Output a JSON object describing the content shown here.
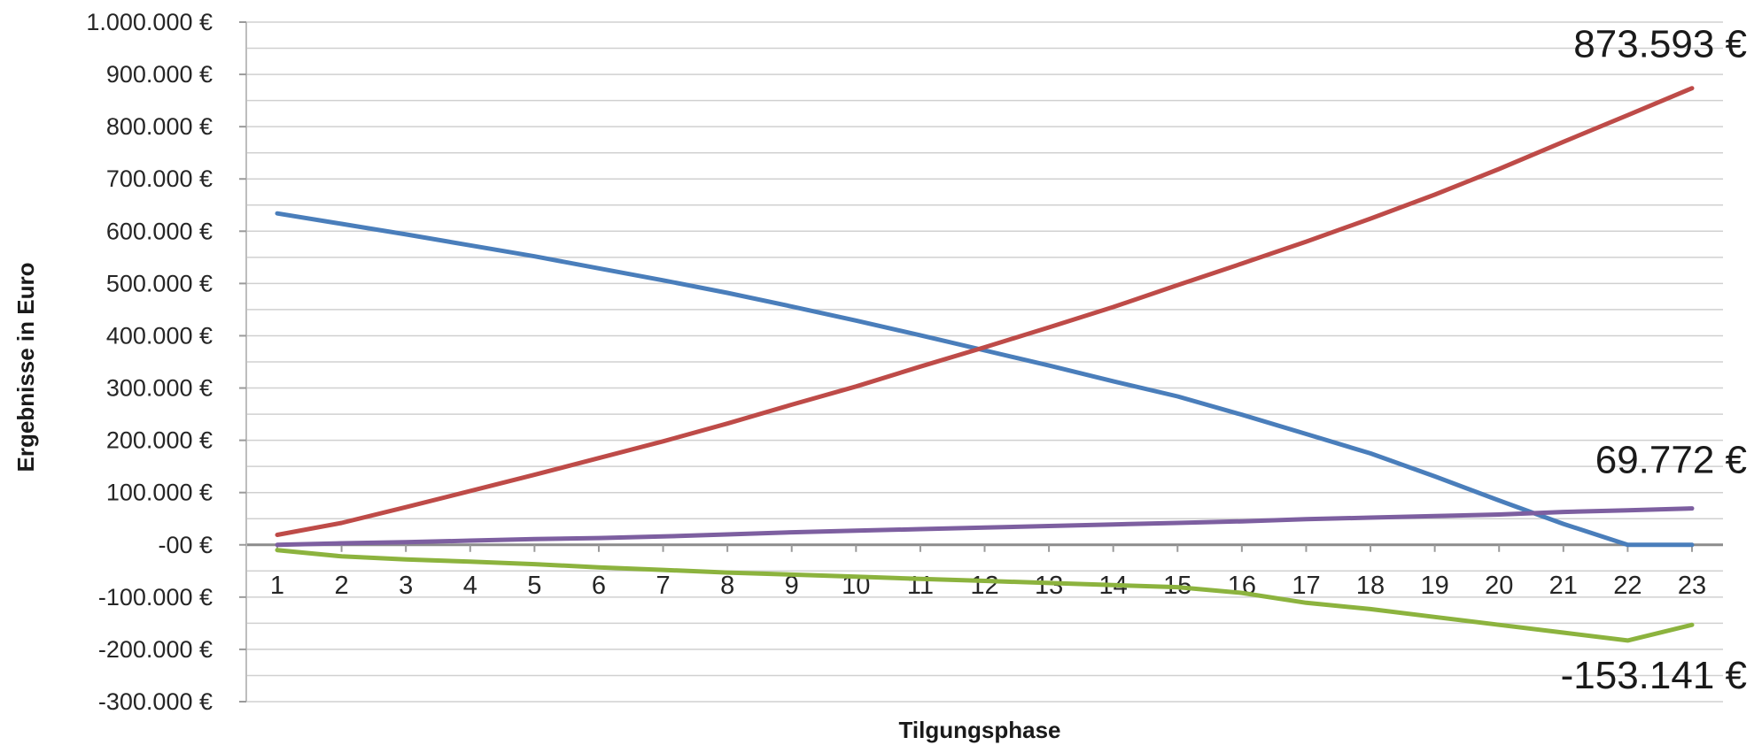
{
  "chart_data": {
    "type": "line",
    "title": "",
    "xlabel": "Tilgungsphase",
    "ylabel": "Ergebnisse in Euro",
    "x": [
      1,
      2,
      3,
      4,
      5,
      6,
      7,
      8,
      9,
      10,
      11,
      12,
      13,
      14,
      15,
      16,
      17,
      18,
      19,
      20,
      21,
      22,
      23
    ],
    "ylim": [
      -300000,
      1000000
    ],
    "y_ticks": [
      1000000,
      900000,
      800000,
      700000,
      600000,
      500000,
      400000,
      300000,
      200000,
      100000,
      0,
      -100000,
      -200000,
      -300000
    ],
    "y_tick_labels": [
      "1.000.000 €",
      "900.000 €",
      "800.000 €",
      "700.000 €",
      "600.000 €",
      "500.000 €",
      "400.000 €",
      "300.000 €",
      "200.000 €",
      "100.000 €",
      "-00 €",
      "-100.000 €",
      "-200.000 €",
      "-300.000 €"
    ],
    "grid": true,
    "legend": "none",
    "series": [
      {
        "color": "#4a7ebb",
        "values": [
          634000,
          614000,
          594000,
          573000,
          552000,
          529000,
          506000,
          482000,
          456000,
          429000,
          401000,
          372000,
          343000,
          313000,
          284000,
          249000,
          212000,
          175000,
          131000,
          85000,
          40000,
          0,
          0
        ]
      },
      {
        "color": "#be4b48",
        "values": [
          19000,
          42000,
          72000,
          103000,
          134000,
          166000,
          198000,
          232000,
          268000,
          303000,
          341000,
          378000,
          416000,
          455000,
          497000,
          538000,
          580000,
          624000,
          670000,
          719000,
          771000,
          822000,
          873593
        ]
      },
      {
        "color": "#7d5fa0",
        "values": [
          0,
          3000,
          5000,
          8000,
          11000,
          13000,
          16000,
          20000,
          24000,
          27000,
          30000,
          33000,
          36000,
          39000,
          42000,
          45000,
          49000,
          52000,
          55000,
          58000,
          63000,
          66000,
          69772
        ]
      },
      {
        "color": "#8cb33e",
        "values": [
          -10000,
          -22000,
          -28000,
          -32000,
          -37000,
          -43000,
          -48000,
          -53000,
          -57000,
          -61000,
          -65000,
          -69000,
          -73000,
          -77000,
          -81000,
          -92000,
          -111000,
          -123000,
          -138000,
          -153000,
          -168000,
          -183000,
          -153141
        ]
      }
    ],
    "annotations": [
      {
        "text": "873.593 €",
        "series": 1
      },
      {
        "text": "69.772 €",
        "series": 2
      },
      {
        "text": "-153.141 €",
        "series": 3
      }
    ]
  }
}
